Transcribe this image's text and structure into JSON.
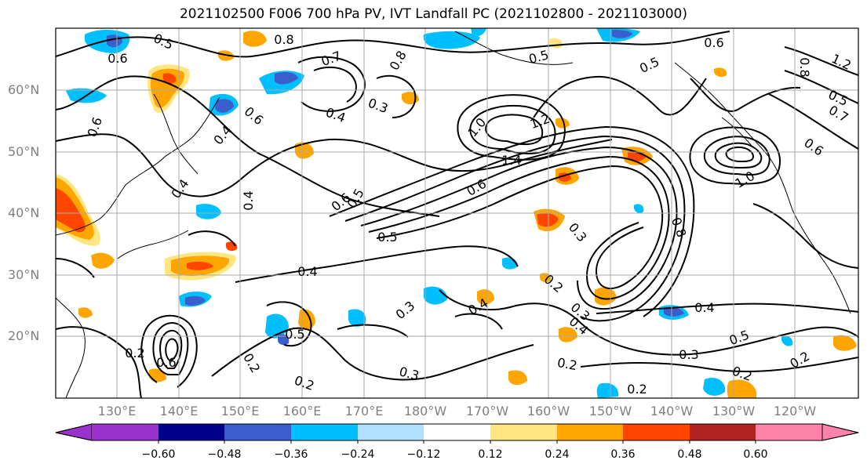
{
  "title": "2021102500 F006 700 hPa PV, IVT Landfall PC (2021102800 - 2021103000)",
  "lat_labels": [
    "60°N",
    "50°N",
    "40°N",
    "30°N",
    "20°N"
  ],
  "lon_labels": [
    "130°E",
    "140°E",
    "150°E",
    "160°E",
    "170°E",
    "180°W",
    "170°W",
    "160°W",
    "150°W",
    "140°W",
    "130°W",
    "120°W"
  ],
  "colorbar": {
    "ticks": [
      "−0.60",
      "−0.48",
      "−0.36",
      "−0.24",
      "−0.12",
      "0.12",
      "0.24",
      "0.36",
      "0.48",
      "0.60"
    ],
    "colors": [
      "#9a32cd",
      "#00008b",
      "#3a5fcd",
      "#00bfff",
      "#b0e2ff",
      "#ffffff",
      "#ffe680",
      "#ffa500",
      "#ff4500",
      "#b22222",
      "#ff82ab"
    ]
  },
  "contour_labels": [
    "0.8",
    "0.5",
    "0.6",
    "0.7",
    "0.8",
    "0.5",
    "0.6",
    "0.8",
    "1.2",
    "0.5",
    "0.5",
    "0.3",
    "0.4",
    "0.6",
    "0.4",
    "1.0",
    "1.2",
    "1.4",
    "0.7",
    "0.6",
    "0.4",
    "0.6",
    "0.5",
    "0.6",
    "1.0",
    "0.4",
    "0.5",
    "0.8",
    "0.4",
    "0.3",
    "0.3",
    "0.2",
    "0.4",
    "0.3",
    "0.4",
    "0.4",
    "0.5",
    "0.2",
    "0.2",
    "0.2",
    "0.3",
    "0.2",
    "0.2",
    "0.3",
    "0.5",
    "0.2",
    "0.2",
    "0.6",
    "0.6"
  ]
}
